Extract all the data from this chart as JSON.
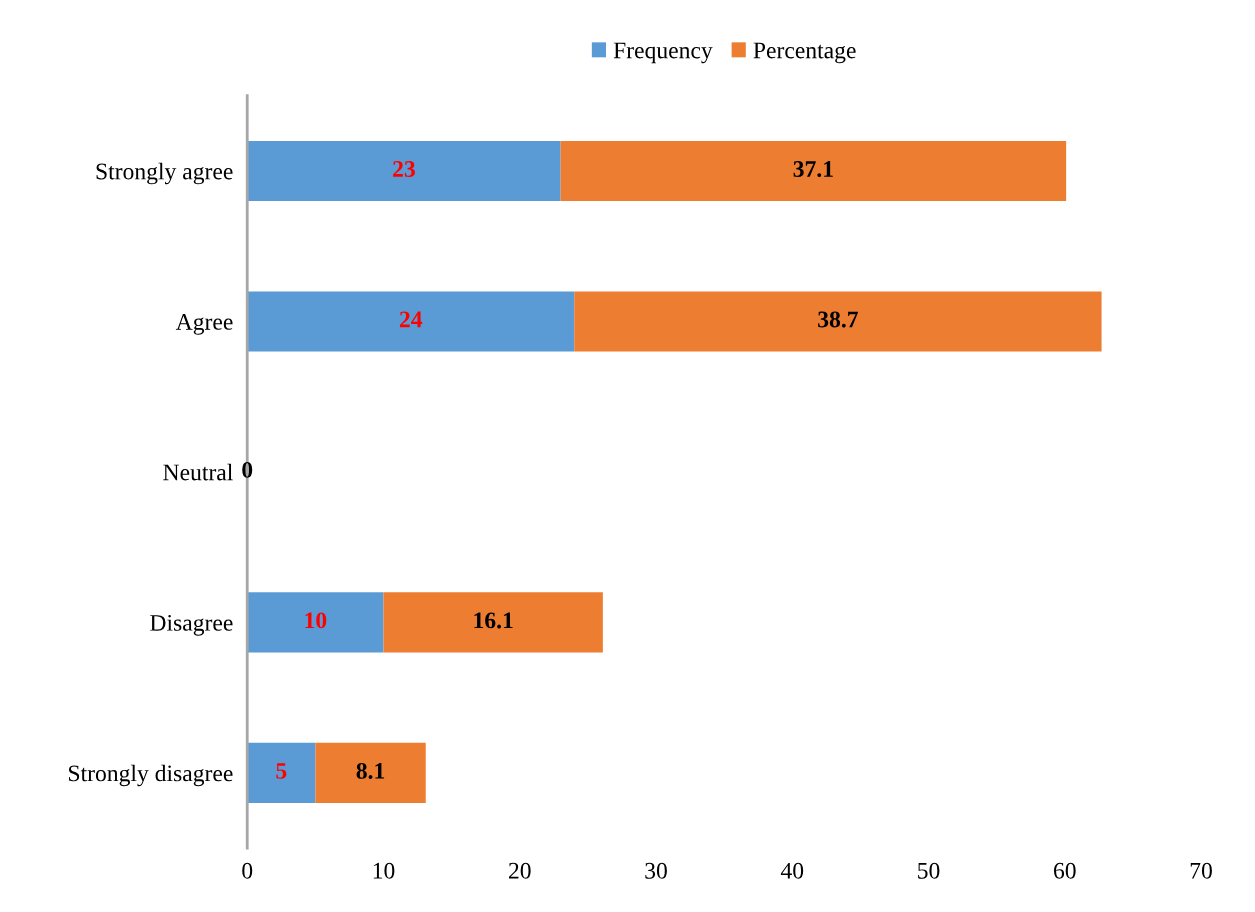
{
  "chart_data": {
    "type": "bar",
    "orientation": "horizontal",
    "stacked": true,
    "categories": [
      "Strongly agree",
      "Agree",
      "Neutral",
      "Disagree",
      "Strongly disagree"
    ],
    "series": [
      {
        "name": "Frequency",
        "color": "#5b9bd5",
        "values": [
          23,
          24,
          0,
          10,
          5
        ],
        "value_labels": [
          "23",
          "24",
          null,
          "10",
          "5"
        ]
      },
      {
        "name": "Percentage",
        "color": "#ed7d31",
        "values": [
          37.1,
          38.7,
          0,
          16.1,
          8.1
        ],
        "value_labels": [
          "37.1",
          "38.7",
          "0",
          "16.1",
          "8.1"
        ]
      }
    ],
    "xlim": [
      0,
      70
    ],
    "xticks": [
      0,
      10,
      20,
      30,
      40,
      50,
      60,
      70
    ],
    "grid": false,
    "legend": "top"
  }
}
